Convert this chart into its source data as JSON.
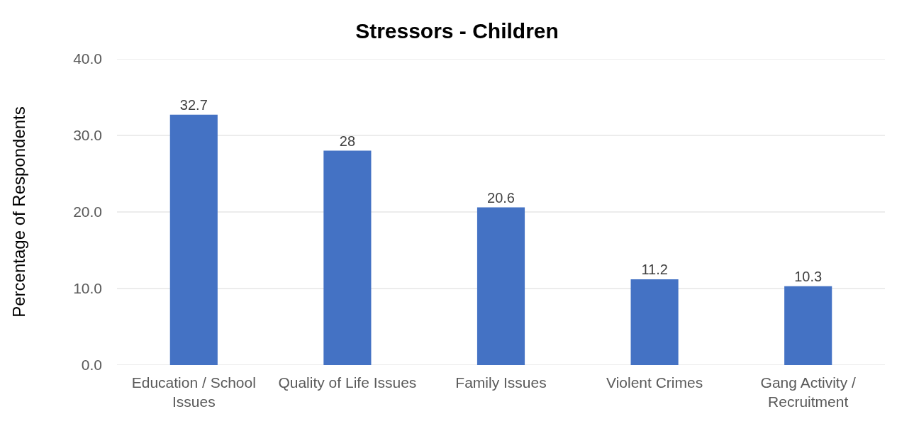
{
  "chart_data": {
    "type": "bar",
    "title": "Stressors - Children",
    "ylabel": "Percentage of Respondents",
    "categories": [
      "Education / School Issues",
      "Quality of Life Issues",
      "Family Issues",
      "Violent Crimes",
      "Gang Activity / Recruitment"
    ],
    "values": [
      32.7,
      28,
      20.6,
      11.2,
      10.3
    ],
    "color": "#4472c4",
    "ylim": [
      0,
      40
    ],
    "yticks": [
      {
        "value": 0,
        "label": "0.0"
      },
      {
        "value": 10,
        "label": "10.0"
      },
      {
        "value": 20,
        "label": "20.0"
      },
      {
        "value": 30,
        "label": "30.0"
      },
      {
        "value": 40,
        "label": "40.0"
      }
    ],
    "grid": "y",
    "data_labels": true
  }
}
